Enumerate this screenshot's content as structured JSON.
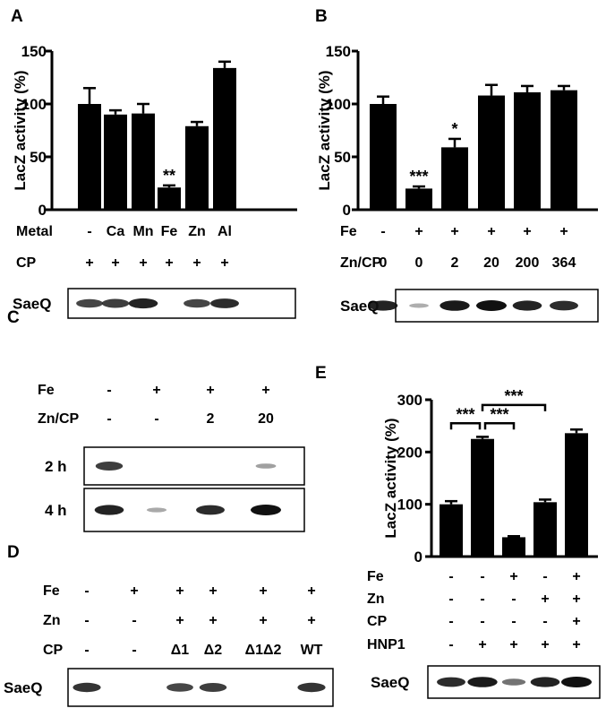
{
  "chart_data": [
    {
      "panel": "A",
      "type": "bar",
      "ylabel": "LacZ activity (%)",
      "ylim": [
        0,
        150
      ],
      "yticks": [
        0,
        50,
        100,
        150
      ],
      "values": [
        100,
        90,
        91,
        21,
        79,
        134
      ],
      "errors": [
        15,
        4,
        9,
        2,
        4,
        6
      ],
      "significance": [
        "",
        "",
        "",
        "**",
        "",
        ""
      ],
      "conditions": [
        {
          "label": "Metal",
          "values": [
            "-",
            "Ca",
            "Mn",
            "Fe",
            "Zn",
            "Al"
          ]
        },
        {
          "label": "CP",
          "values": [
            "+",
            "+",
            "+",
            "+",
            "+",
            "+"
          ]
        }
      ],
      "blots": [
        {
          "label": "SaeQ",
          "band_intensity": [
            0.7,
            0.75,
            0.9,
            0,
            0.7,
            0.85
          ]
        }
      ]
    },
    {
      "panel": "B",
      "type": "bar",
      "ylabel": "LacZ activity (%)",
      "ylim": [
        0,
        150
      ],
      "yticks": [
        0,
        50,
        100,
        150
      ],
      "values": [
        100,
        20,
        59,
        108,
        111,
        113
      ],
      "errors": [
        7,
        2,
        8,
        10,
        6,
        4
      ],
      "significance": [
        "",
        "***",
        "*",
        "",
        "",
        ""
      ],
      "conditions": [
        {
          "label": "Fe",
          "values": [
            "-",
            "+",
            "+",
            "+",
            "+",
            "+"
          ]
        },
        {
          "label": "Zn/CP",
          "values": [
            "0",
            "0",
            "2",
            "20",
            "200",
            "364"
          ]
        }
      ],
      "blots": [
        {
          "label": "SaeQ",
          "band_intensity": [
            0.9,
            0.12,
            0.95,
            1,
            0.9,
            0.85
          ]
        }
      ]
    },
    {
      "panel": "C",
      "type": "table",
      "conditions": [
        {
          "label": "Fe",
          "values": [
            "-",
            "+",
            "+",
            "+"
          ]
        },
        {
          "label": "Zn/CP",
          "values": [
            "-",
            "-",
            "2",
            "20"
          ]
        }
      ],
      "blots": [
        {
          "label": "2 h",
          "band_intensity": [
            0.75,
            0,
            0,
            0.2
          ]
        },
        {
          "label": "4 h",
          "band_intensity": [
            0.9,
            0.15,
            0.85,
            1
          ]
        }
      ]
    },
    {
      "panel": "D",
      "type": "table",
      "conditions": [
        {
          "label": "Fe",
          "values": [
            "-",
            "+",
            "+",
            "+",
            "+",
            "+"
          ]
        },
        {
          "label": "Zn",
          "values": [
            "-",
            "-",
            "+",
            "+",
            "+",
            "+"
          ]
        },
        {
          "label": "CP",
          "values": [
            "-",
            "-",
            "Δ1",
            "Δ2",
            "Δ1Δ2",
            "WT"
          ]
        }
      ],
      "blots": [
        {
          "label": "SaeQ",
          "band_intensity": [
            0.8,
            0,
            0.7,
            0.75,
            0,
            0.8
          ]
        }
      ]
    },
    {
      "panel": "E",
      "type": "bar",
      "ylabel": "LacZ activity (%)",
      "ylim": [
        0,
        300
      ],
      "yticks": [
        0,
        100,
        200,
        300
      ],
      "values": [
        100,
        225,
        37,
        104,
        236
      ],
      "errors": [
        6,
        4,
        2,
        5,
        7
      ],
      "significance_brackets": [
        {
          "from": 0,
          "to": 1,
          "label": "***"
        },
        {
          "from": 1,
          "to": 2,
          "label": "***"
        },
        {
          "from": 1,
          "to": 3,
          "label": "***"
        }
      ],
      "conditions": [
        {
          "label": "Fe",
          "values": [
            "-",
            "-",
            "+",
            "-",
            "+"
          ]
        },
        {
          "label": "Zn",
          "values": [
            "-",
            "-",
            "-",
            "+",
            "+"
          ]
        },
        {
          "label": "CP",
          "values": [
            "-",
            "-",
            "-",
            "-",
            "+"
          ]
        },
        {
          "label": "HNP1",
          "values": [
            "-",
            "+",
            "+",
            "+",
            "+"
          ]
        }
      ],
      "blots": [
        {
          "label": "SaeQ",
          "band_intensity": [
            0.85,
            0.95,
            0.45,
            0.9,
            1
          ]
        }
      ]
    }
  ]
}
